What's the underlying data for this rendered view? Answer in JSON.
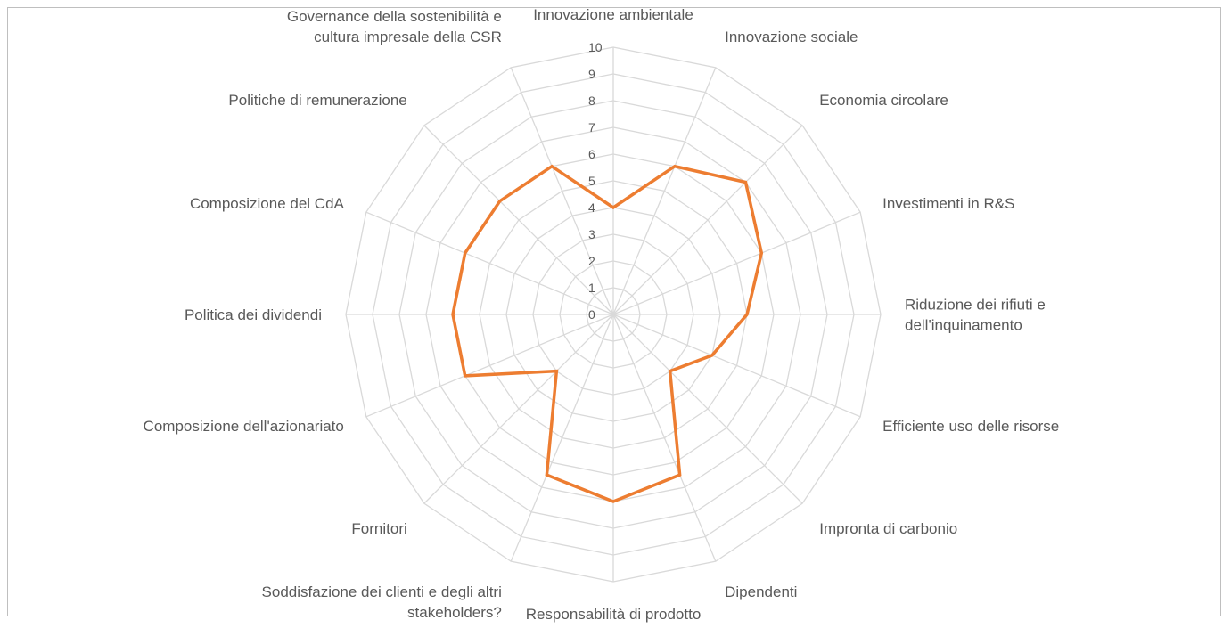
{
  "chart_data": {
    "type": "radar",
    "title": "",
    "categories": [
      [
        "Innovazione ambientale"
      ],
      [
        "Innovazione sociale"
      ],
      [
        "Economia circolare"
      ],
      [
        "Investimenti in R&S"
      ],
      [
        "Riduzione dei rifiuti e",
        "dell'inquinamento"
      ],
      [
        "Efficiente uso delle risorse"
      ],
      [
        "Impronta di carbonio"
      ],
      [
        "Dipendenti"
      ],
      [
        "Responsabilità di prodotto"
      ],
      [
        "Soddisfazione dei clienti e degli altri",
        "stakeholders?"
      ],
      [
        "Fornitori"
      ],
      [
        "Composizione dell'azionariato"
      ],
      [
        "Politica dei dividendi"
      ],
      [
        "Composizione del CdA"
      ],
      [
        "Politiche di remunerazione"
      ],
      [
        "Governance della sostenibilità e",
        "cultura impresale della CSR"
      ]
    ],
    "series": [
      {
        "values": [
          4,
          6,
          7,
          6,
          5,
          4,
          3,
          6.5,
          7,
          6.5,
          3,
          6,
          6,
          6,
          6,
          6
        ],
        "color": "#ED7D31"
      }
    ],
    "rlim": [
      0,
      10
    ],
    "ticks": [
      0,
      1,
      2,
      3,
      4,
      5,
      6,
      7,
      8,
      9,
      10
    ],
    "gridlines": true,
    "gridline_color": "#d9d9d9",
    "legend": "none"
  }
}
